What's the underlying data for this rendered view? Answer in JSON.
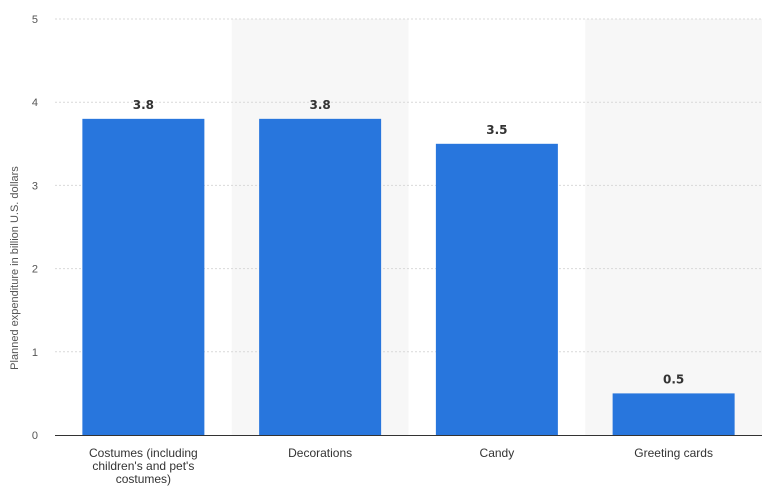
{
  "chart_data": {
    "type": "bar",
    "categories": [
      [
        "Costumes (including",
        "children's and pet's",
        "costumes)"
      ],
      [
        "Decorations"
      ],
      [
        "Candy"
      ],
      [
        "Greeting cards"
      ]
    ],
    "values": [
      3.8,
      3.8,
      3.5,
      0.5
    ],
    "data_labels": [
      "3.8",
      "3.8",
      "3.5",
      "0.5"
    ],
    "ylabel": "Planned expenditure in billion U.S. dollars",
    "xlabel": "",
    "ylim": [
      0,
      5
    ],
    "yticks": [
      "0",
      "1",
      "2",
      "3",
      "4",
      "5"
    ],
    "grid": true,
    "colors": {
      "bar": "#2876dd",
      "grid": "#d9d9d9",
      "band": "#f7f7f7",
      "axis": "#333333"
    }
  }
}
